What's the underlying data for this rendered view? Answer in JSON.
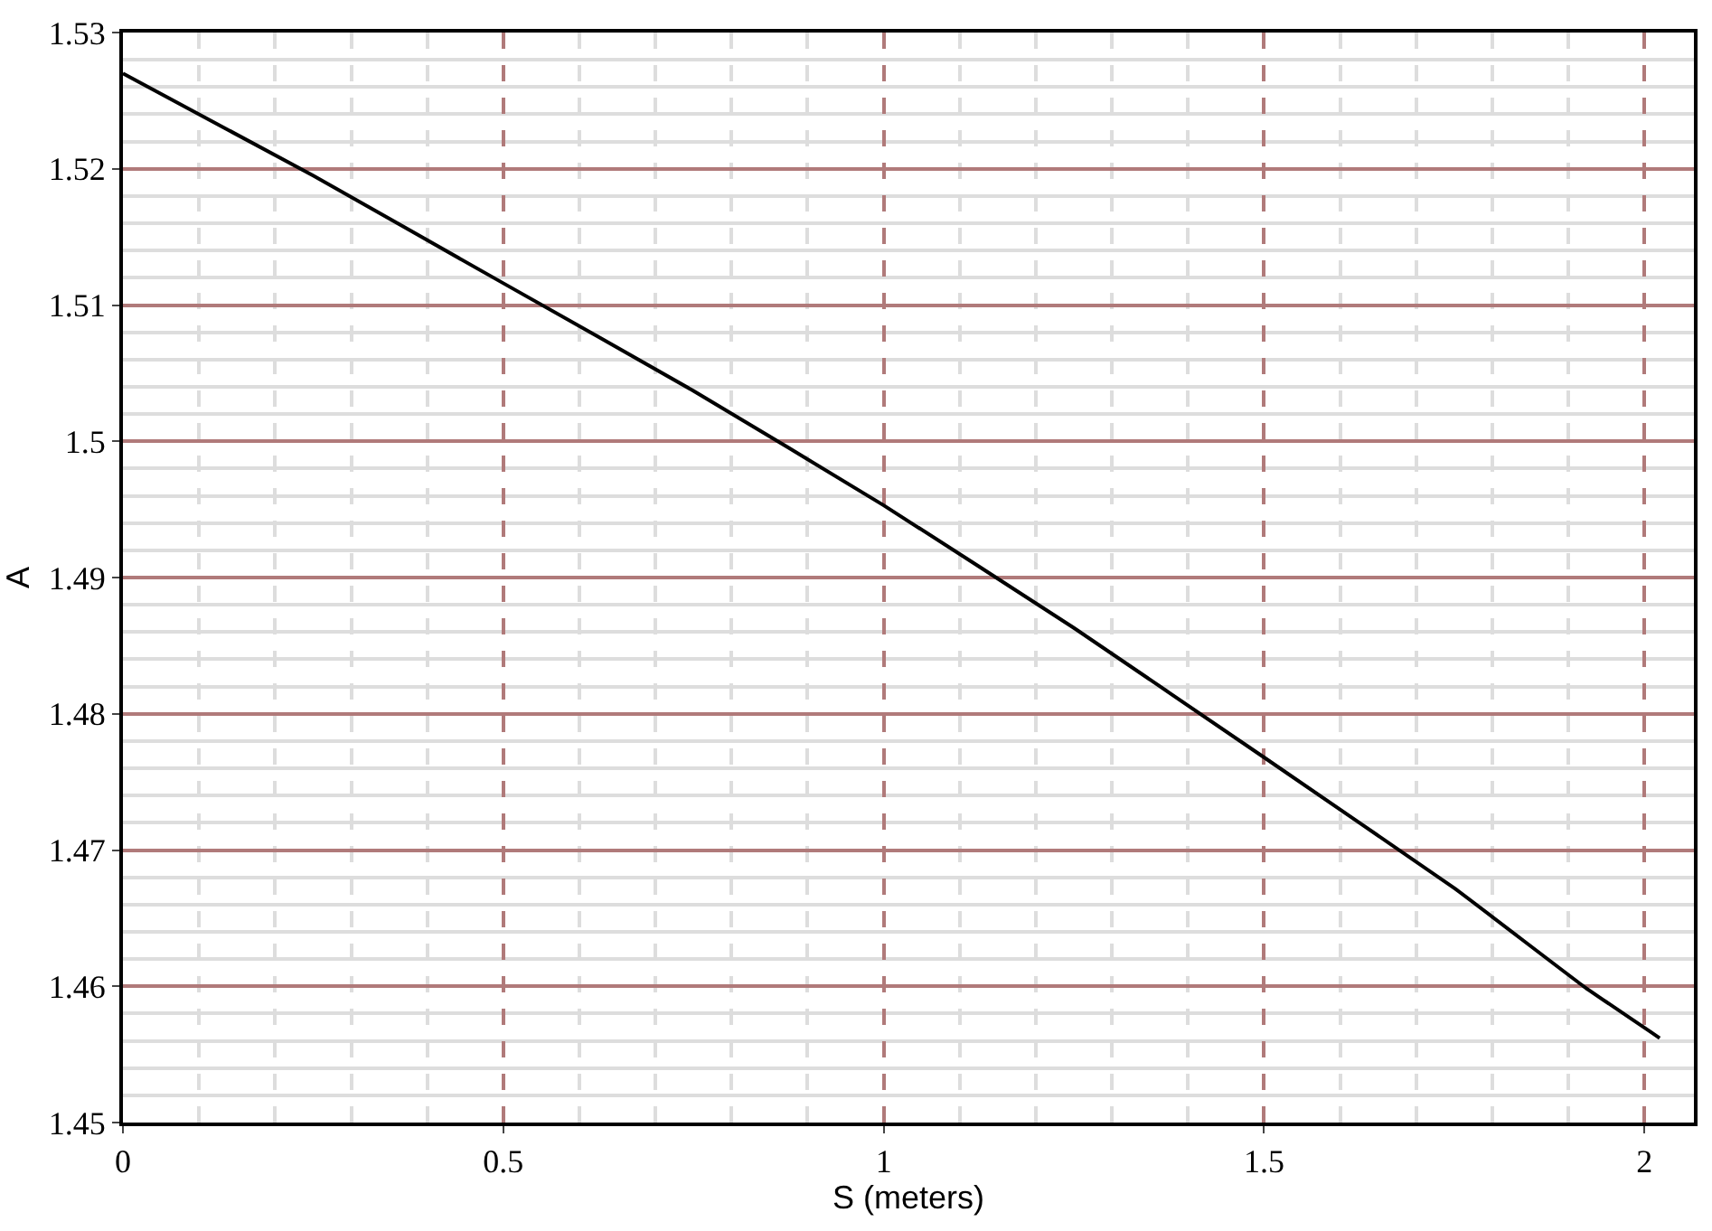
{
  "chart_data": {
    "type": "line",
    "xlabel": "S (meters)",
    "ylabel": "A",
    "x": [
      0,
      0.25,
      0.5,
      0.75,
      1,
      1.25,
      1.5,
      1.75,
      1.92,
      2.02
    ],
    "series": [
      {
        "color": "#000000",
        "values": [
          1.527,
          1.5195,
          1.5116,
          1.5037,
          1.4953,
          1.4863,
          1.4768,
          1.4672,
          1.46,
          1.4562
        ]
      }
    ],
    "xlim": [
      0,
      2.065
    ],
    "ylim": [
      1.45,
      1.53
    ],
    "xticks": [
      0,
      0.5,
      1,
      1.5,
      2
    ],
    "yticks": [
      1.45,
      1.46,
      1.47,
      1.48,
      1.49,
      1.5,
      1.51,
      1.52,
      1.53
    ],
    "grid": true,
    "marker": "none",
    "line_style": "solid"
  }
}
